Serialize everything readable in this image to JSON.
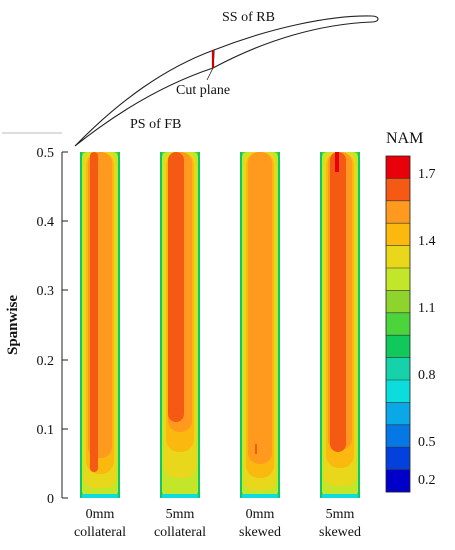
{
  "schematic": {
    "label_ss": "SS of RB",
    "label_cut": "Cut plane",
    "label_ps": "PS of FB"
  },
  "axis": {
    "ylabel": "Spanwise",
    "ticks": [
      "0.5",
      "0.4",
      "0.3",
      "0.2",
      "0.1",
      "0"
    ]
  },
  "panels": [
    {
      "line1": "0mm",
      "line2": "collateral"
    },
    {
      "line1": "5mm",
      "line2": "collateral"
    },
    {
      "line1": "0mm",
      "line2": "skewed"
    },
    {
      "line1": "5mm",
      "line2": "skewed"
    }
  ],
  "legend": {
    "title": "NAM",
    "labels": [
      "1.7",
      "1.4",
      "1.1",
      "0.8",
      "0.5",
      "0.2"
    ],
    "colors": [
      "#e8000a",
      "#f55a14",
      "#ff9a1e",
      "#fbb80e",
      "#e8d71a",
      "#c3e62a",
      "#8ed42c",
      "#4cd43c",
      "#10c85c",
      "#16d2aa",
      "#0cdcdc",
      "#0aa8e6",
      "#0678e6",
      "#0440dc",
      "#0000c8"
    ]
  },
  "palette": {
    "red": "#e8000a",
    "orange_red": "#f55a14",
    "orange": "#ff9a1e",
    "amber": "#fbb80e",
    "yellow": "#e8d71a",
    "yellow_green": "#c3e62a",
    "green": "#4cd43c",
    "teal": "#10c85c",
    "cyan": "#0cdcdc",
    "blue": "#0678e6"
  }
}
